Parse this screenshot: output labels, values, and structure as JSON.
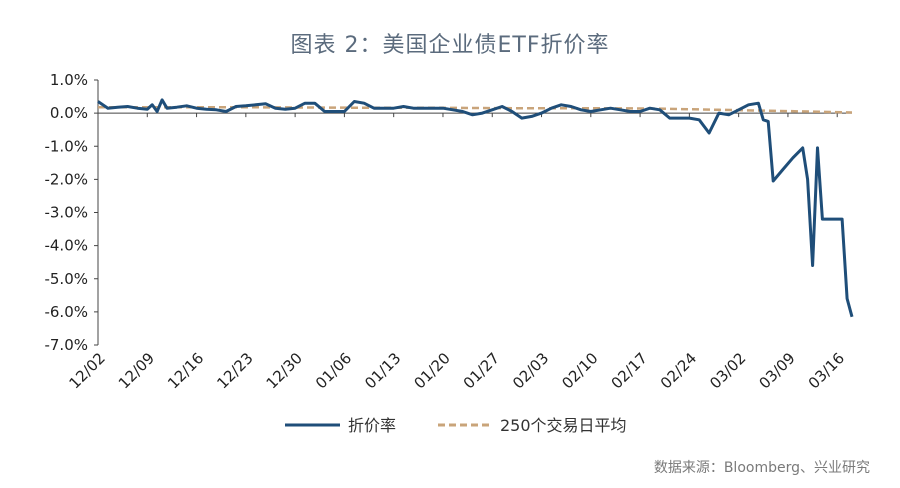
{
  "title": "图表 2：美国企业债ETF折价率",
  "source": "数据来源：Bloomberg、兴业研究",
  "chart_data": {
    "type": "line",
    "ylim": [
      -7.0,
      1.0
    ],
    "yticks": [
      1.0,
      0.0,
      -1.0,
      -2.0,
      -3.0,
      -4.0,
      -5.0,
      -6.0,
      -7.0
    ],
    "ytick_labels": [
      "1.0%",
      "0.0%",
      "-1.0%",
      "-2.0%",
      "-3.0%",
      "-4.0%",
      "-5.0%",
      "-6.0%",
      "-7.0%"
    ],
    "x_ticks": [
      {
        "label": "12/02",
        "i": 0
      },
      {
        "label": "12/09",
        "i": 5
      },
      {
        "label": "12/16",
        "i": 10
      },
      {
        "label": "12/23",
        "i": 15
      },
      {
        "label": "12/30",
        "i": 20
      },
      {
        "label": "01/06",
        "i": 25
      },
      {
        "label": "01/13",
        "i": 30
      },
      {
        "label": "01/20",
        "i": 35
      },
      {
        "label": "01/27",
        "i": 40
      },
      {
        "label": "02/03",
        "i": 45
      },
      {
        "label": "02/10",
        "i": 50
      },
      {
        "label": "02/17",
        "i": 55
      },
      {
        "label": "02/24",
        "i": 60
      },
      {
        "label": "03/02",
        "i": 65
      },
      {
        "label": "03/09",
        "i": 70
      },
      {
        "label": "03/16",
        "i": 75
      }
    ],
    "series": [
      {
        "name": "折价率",
        "color": "#1f4e79",
        "style": "solid",
        "values": [
          0.35,
          0.15,
          0.18,
          0.2,
          0.15,
          0.12,
          0.25,
          0.05,
          0.4,
          0.15,
          0.18,
          0.22,
          0.15,
          0.12,
          0.1,
          0.05,
          0.2,
          0.22,
          0.25,
          0.28,
          0.15,
          0.12,
          0.15,
          0.3,
          0.3,
          0.05,
          0.05,
          0.05,
          0.35,
          0.3,
          0.15,
          0.15,
          0.15,
          0.2,
          0.15,
          0.15,
          0.15,
          0.15,
          0.1,
          0.05,
          -0.05,
          0.0,
          0.1,
          0.2,
          0.05,
          -0.15,
          -0.1,
          0.0,
          0.15,
          0.25,
          0.2,
          0.1,
          0.05,
          0.1,
          0.15,
          0.1,
          0.05,
          0.05,
          0.15,
          0.1,
          -0.15,
          -0.15,
          -0.15,
          -0.2,
          -0.6,
          0.0,
          -0.05,
          0.1,
          0.25,
          0.3,
          -0.2,
          -0.25,
          -2.05,
          -1.7,
          -1.35,
          -1.05,
          -2.0,
          -4.6,
          -1.05,
          -3.2,
          -3.2,
          -3.2,
          -3.2,
          -5.6,
          -6.15
        ],
        "xs": [
          0,
          1,
          2,
          3,
          4,
          5,
          5.5,
          6,
          6.5,
          7,
          8,
          9,
          10,
          11,
          12,
          13,
          14,
          15,
          16,
          17,
          18,
          19,
          20,
          21,
          22,
          23,
          24,
          25,
          26,
          27,
          28,
          29,
          30,
          31,
          32,
          33,
          34,
          35,
          36,
          37,
          38,
          39,
          40,
          41,
          42,
          43,
          44,
          45,
          46,
          47,
          48,
          49,
          50,
          51,
          52,
          53,
          54,
          55,
          56,
          57,
          58,
          59,
          60,
          61,
          62,
          63,
          64,
          65,
          66,
          67,
          67.5,
          68,
          68.5,
          69.5,
          70.5,
          71.5,
          72,
          72.5,
          73,
          73.5,
          74.5,
          75,
          75.5,
          76,
          76.5
        ]
      },
      {
        "name": "250个交易日平均",
        "color": "#c9a47a",
        "style": "dashed",
        "values": [
          0.18,
          0.18,
          0.18,
          0.17,
          0.16,
          0.16,
          0.15,
          0.15,
          0.14,
          0.1,
          0.06,
          0.02
        ],
        "xs": [
          0,
          7,
          14,
          21,
          28,
          35,
          42,
          49,
          56,
          63,
          70,
          76.5
        ]
      }
    ]
  }
}
